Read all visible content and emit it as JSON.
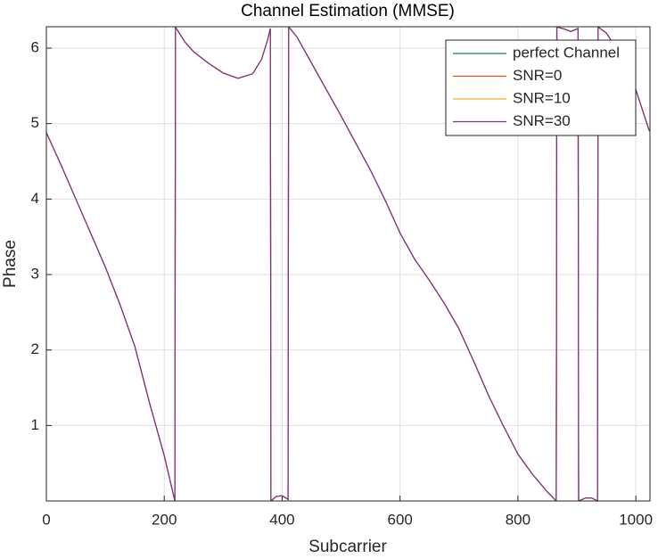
{
  "chart_data": {
    "type": "line",
    "title": "Channel Estimation (MMSE)",
    "x_label": "Subcarrier",
    "y_label": "Phase",
    "x": [
      0,
      25,
      50,
      75,
      100,
      125,
      150,
      175,
      200,
      218,
      219,
      235,
      250,
      275,
      300,
      325,
      350,
      365,
      375,
      380,
      381,
      390,
      400,
      410,
      411,
      425,
      450,
      475,
      500,
      525,
      550,
      575,
      600,
      625,
      650,
      675,
      700,
      725,
      750,
      775,
      800,
      825,
      850,
      865,
      866,
      880,
      890,
      902,
      903,
      915,
      925,
      935,
      936,
      950,
      975,
      1000,
      1023
    ],
    "series": [
      {
        "name": "perfect Channel",
        "color": "#0f7f6f",
        "values": [
          4.88,
          4.45,
          4.0,
          3.55,
          3.1,
          2.6,
          2.05,
          1.3,
          0.6,
          0.0,
          6.28,
          6.08,
          5.95,
          5.8,
          5.67,
          5.6,
          5.66,
          5.85,
          6.1,
          6.26,
          0.0,
          0.06,
          0.07,
          0.02,
          6.28,
          6.15,
          5.8,
          5.45,
          5.1,
          4.74,
          4.38,
          3.98,
          3.55,
          3.2,
          2.92,
          2.62,
          2.28,
          1.85,
          1.4,
          1.0,
          0.62,
          0.35,
          0.12,
          0.0,
          6.28,
          6.25,
          6.22,
          6.26,
          0.0,
          0.04,
          0.04,
          0.0,
          6.28,
          6.2,
          5.9,
          5.45,
          4.9
        ]
      },
      {
        "name": "SNR=0",
        "color": "#d95319",
        "values": [
          4.88,
          4.45,
          4.0,
          3.55,
          3.1,
          2.6,
          2.05,
          1.3,
          0.6,
          0.0,
          6.28,
          6.08,
          5.95,
          5.8,
          5.67,
          5.6,
          5.66,
          5.85,
          6.1,
          6.26,
          0.0,
          0.06,
          0.07,
          0.02,
          6.28,
          6.15,
          5.8,
          5.45,
          5.1,
          4.74,
          4.38,
          3.98,
          3.55,
          3.2,
          2.92,
          2.62,
          2.28,
          1.85,
          1.4,
          1.0,
          0.62,
          0.35,
          0.12,
          0.0,
          6.28,
          6.25,
          6.22,
          6.26,
          0.0,
          0.04,
          0.04,
          0.0,
          6.28,
          6.2,
          5.9,
          5.45,
          4.9
        ]
      },
      {
        "name": "SNR=10",
        "color": "#edb120",
        "values": [
          4.88,
          4.45,
          4.0,
          3.55,
          3.1,
          2.6,
          2.05,
          1.3,
          0.6,
          0.0,
          6.28,
          6.08,
          5.95,
          5.8,
          5.67,
          5.6,
          5.66,
          5.85,
          6.1,
          6.26,
          0.0,
          0.06,
          0.07,
          0.02,
          6.28,
          6.15,
          5.8,
          5.45,
          5.1,
          4.74,
          4.38,
          3.98,
          3.55,
          3.2,
          2.92,
          2.62,
          2.28,
          1.85,
          1.4,
          1.0,
          0.62,
          0.35,
          0.12,
          0.0,
          6.28,
          6.25,
          6.22,
          6.26,
          0.0,
          0.04,
          0.04,
          0.0,
          6.28,
          6.2,
          5.9,
          5.45,
          4.9
        ]
      },
      {
        "name": "SNR=30",
        "color": "#7e2f8e",
        "values": [
          4.88,
          4.45,
          4.0,
          3.55,
          3.1,
          2.6,
          2.05,
          1.3,
          0.6,
          0.0,
          6.28,
          6.08,
          5.95,
          5.8,
          5.67,
          5.6,
          5.66,
          5.85,
          6.1,
          6.26,
          0.0,
          0.06,
          0.07,
          0.02,
          6.28,
          6.15,
          5.8,
          5.45,
          5.1,
          4.74,
          4.38,
          3.98,
          3.55,
          3.2,
          2.92,
          2.62,
          2.28,
          1.85,
          1.4,
          1.0,
          0.62,
          0.35,
          0.12,
          0.0,
          6.28,
          6.25,
          6.22,
          6.26,
          0.0,
          0.04,
          0.04,
          0.0,
          6.28,
          6.2,
          5.9,
          5.45,
          4.9
        ]
      }
    ],
    "xlim": [
      0,
      1024
    ],
    "xticks": [
      0,
      200,
      400,
      600,
      800,
      1000
    ],
    "ylim": [
      0,
      6.2832
    ],
    "yticks": [
      1,
      2,
      3,
      4,
      5,
      6
    ],
    "grid": true,
    "legend": "top-right"
  }
}
